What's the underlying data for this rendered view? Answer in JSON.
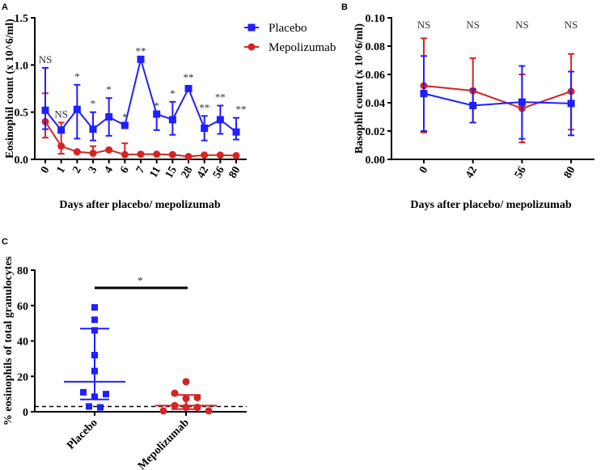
{
  "colors": {
    "placebo": "#1f1fff",
    "mepolizumab": "#d42424",
    "axis": "#000000"
  },
  "legend": {
    "placebo": "Placebo",
    "mepolizumab": "Mepolizumab"
  },
  "chart_data": [
    {
      "panel": "A",
      "type": "line",
      "xlabel": "Days after placebo/ mepolizumab",
      "ylabel": "Eosinophil count (x 10^6/ml)",
      "ylim": [
        0,
        1.5
      ],
      "yticks": [
        "0.0",
        "0.5",
        "1.0",
        "1.5"
      ],
      "categories": [
        "0",
        "1",
        "2",
        "3",
        "4",
        "6",
        "7",
        "11",
        "15",
        "28",
        "42",
        "56",
        "80"
      ],
      "annotations": [
        "NS",
        "NS",
        "*",
        "*",
        "*",
        "*",
        "**",
        "*",
        "*",
        "**",
        "**",
        "**",
        "**"
      ],
      "series": [
        {
          "name": "Placebo",
          "key": "placebo",
          "marker": "square",
          "values": [
            0.52,
            0.31,
            0.53,
            0.32,
            0.45,
            0.36,
            1.06,
            0.48,
            0.42,
            0.75,
            0.33,
            0.42,
            0.29
          ],
          "err_low": [
            0.32,
            0.31,
            0.22,
            0.2,
            0.25,
            0.36,
            1.06,
            0.31,
            0.26,
            0.75,
            0.2,
            0.27,
            0.21
          ],
          "err_high": [
            0.97,
            0.31,
            0.79,
            0.5,
            0.65,
            0.36,
            1.06,
            0.48,
            0.61,
            0.78,
            0.46,
            0.57,
            0.44
          ]
        },
        {
          "name": "Mepolizumab",
          "key": "mepolizumab",
          "marker": "circle",
          "values": [
            0.4,
            0.14,
            0.08,
            0.065,
            0.1,
            0.05,
            0.055,
            0.055,
            0.05,
            0.03,
            0.045,
            0.045,
            0.04
          ],
          "err_low": [
            0.23,
            0.06,
            0.08,
            0.065,
            0.1,
            0.05,
            0.055,
            0.055,
            0.05,
            0.03,
            0.045,
            0.045,
            0.04
          ],
          "err_high": [
            0.7,
            0.39,
            0.08,
            0.14,
            0.1,
            0.17,
            0.055,
            0.055,
            0.05,
            0.03,
            0.045,
            0.045,
            0.04
          ]
        }
      ]
    },
    {
      "panel": "B",
      "type": "line",
      "xlabel": "Days after placebo/ mepolizumab",
      "ylabel": "Basophil count (x 10^6/ml)",
      "ylim": [
        0,
        0.1
      ],
      "yticks": [
        "0.00",
        "0.02",
        "0.04",
        "0.06",
        "0.08",
        "0.10"
      ],
      "categories": [
        "0",
        "42",
        "56",
        "80"
      ],
      "annotations": [
        "NS",
        "NS",
        "NS",
        "NS"
      ],
      "series": [
        {
          "name": "Placebo",
          "key": "placebo",
          "marker": "square",
          "values": [
            0.0465,
            0.038,
            0.0405,
            0.0395
          ],
          "err_low": [
            0.02,
            0.026,
            0.0145,
            0.017
          ],
          "err_high": [
            0.073,
            0.0495,
            0.066,
            0.062
          ]
        },
        {
          "name": "Mepolizumab",
          "key": "mepolizumab",
          "marker": "circle",
          "values": [
            0.052,
            0.0485,
            0.036,
            0.048
          ],
          "err_low": [
            0.019,
            0.026,
            0.012,
            0.021
          ],
          "err_high": [
            0.0855,
            0.0715,
            0.06,
            0.0745
          ]
        }
      ]
    },
    {
      "panel": "C",
      "type": "scatter",
      "ylabel": "% eosinophils of total granulocytes",
      "ylim": [
        0,
        80
      ],
      "yticks": [
        "0",
        "20",
        "40",
        "60",
        "80"
      ],
      "categories": [
        "Placebo",
        "Mepolizumab"
      ],
      "reference_line": 3,
      "significance": {
        "label": "*",
        "y": 70
      },
      "groups": [
        {
          "name": "Placebo",
          "key": "placebo",
          "marker": "square",
          "points": [
            59,
            52,
            46,
            32,
            23,
            11,
            10,
            8.5,
            3,
            2.5
          ],
          "mean": 17,
          "err_low": 7,
          "err_high": 47
        },
        {
          "name": "Mepolizumab",
          "key": "mepolizumab",
          "marker": "circle",
          "points": [
            17,
            10.5,
            8,
            7.5,
            3.5,
            2.5,
            2.5,
            0.5,
            0.5
          ],
          "mean": 3.5,
          "err_low": 1.5,
          "err_high": 9.5
        }
      ]
    }
  ]
}
